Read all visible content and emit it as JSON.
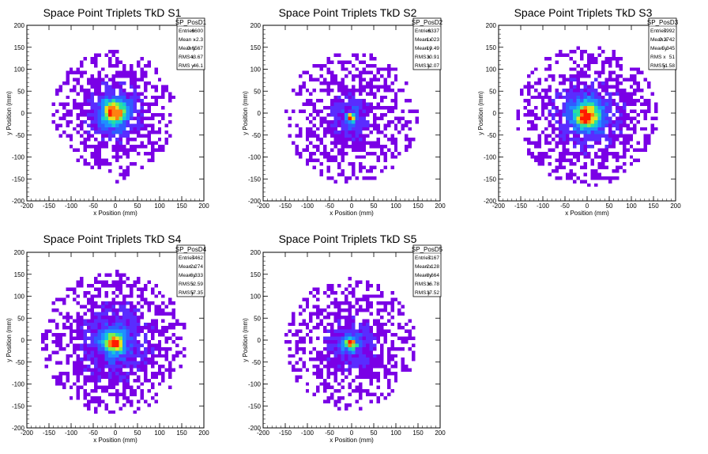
{
  "chart_data": [
    {
      "type": "heatmap",
      "title": "Space Point Triplets TkD S1",
      "xlabel": "x Position (mm)",
      "ylabel": "y Position (mm)",
      "xlim": [
        -200,
        200
      ],
      "ylim": [
        -200,
        200
      ],
      "xticks": [
        -200,
        -150,
        -100,
        -50,
        0,
        50,
        100,
        150,
        200
      ],
      "yticks": [
        -200,
        -150,
        -100,
        -50,
        0,
        50,
        100,
        150,
        200
      ],
      "grid": false,
      "stats_box": {
        "name": "SP_PosD1",
        "rows": [
          {
            "label": "Entries",
            "value": "6600"
          },
          {
            "label": "Mean x",
            "value": "-2.3"
          },
          {
            "label": "Mean y",
            "value": "0.6567"
          },
          {
            "label": "RMS x",
            "value": "43.67"
          },
          {
            "label": "RMS y",
            "value": "46.1"
          }
        ]
      },
      "distribution": {
        "mean_x": -2.3,
        "mean_y": 0.6567,
        "rms_x": 43.67,
        "rms_y": 46.1,
        "core_sigma": 18,
        "extent_radius": 140,
        "extra_band": true
      }
    },
    {
      "type": "heatmap",
      "title": "Space Point Triplets TkD S2",
      "xlabel": "x Position (mm)",
      "ylabel": "y Position (mm)",
      "xlim": [
        -200,
        200
      ],
      "ylim": [
        -200,
        200
      ],
      "xticks": [
        -200,
        -150,
        -100,
        -50,
        0,
        50,
        100,
        150,
        200
      ],
      "yticks": [
        -200,
        -150,
        -100,
        -50,
        0,
        50,
        100,
        150,
        200
      ],
      "grid": false,
      "stats_box": {
        "name": "SP_PosD2",
        "rows": [
          {
            "label": "Entries",
            "value": "6337"
          },
          {
            "label": "Mean x",
            "value": "-1.023"
          },
          {
            "label": "Mean y",
            "value": "-10.49"
          },
          {
            "label": "RMS x",
            "value": "30.91"
          },
          {
            "label": "RMS y",
            "value": "32.07"
          }
        ]
      },
      "distribution": {
        "mean_x": -1.023,
        "mean_y": -10.49,
        "rms_x": 30.91,
        "rms_y": 32.07,
        "core_sigma": 7,
        "extent_radius": 150,
        "extra_band": false
      }
    },
    {
      "type": "heatmap",
      "title": "Space Point Triplets TkD S3",
      "xlabel": "x Position (mm)",
      "ylabel": "y Position (mm)",
      "xlim": [
        -200,
        200
      ],
      "ylim": [
        -200,
        200
      ],
      "xticks": [
        -200,
        -150,
        -100,
        -50,
        0,
        50,
        100,
        150,
        200
      ],
      "yticks": [
        -200,
        -150,
        -100,
        -50,
        0,
        50,
        100,
        150,
        200
      ],
      "grid": false,
      "stats_box": {
        "name": "SP_PosD3",
        "rows": [
          {
            "label": "Entries",
            "value": "7992"
          },
          {
            "label": "Mean x",
            "value": "0.2742"
          },
          {
            "label": "Mean y",
            "value": "-5.345"
          },
          {
            "label": "RMS x",
            "value": "51"
          },
          {
            "label": "RMS y",
            "value": "51.58"
          }
        ]
      },
      "distribution": {
        "mean_x": 0.2742,
        "mean_y": -5.345,
        "rms_x": 51,
        "rms_y": 51.58,
        "core_sigma": 20,
        "extent_radius": 160,
        "extra_band": false
      }
    },
    {
      "type": "heatmap",
      "title": "Space Point Triplets TkD S4",
      "xlabel": "x Position (mm)",
      "ylabel": "y Position (mm)",
      "xlim": [
        -200,
        200
      ],
      "ylim": [
        -200,
        200
      ],
      "xticks": [
        -200,
        -150,
        -100,
        -50,
        0,
        50,
        100,
        150,
        200
      ],
      "yticks": [
        -200,
        -150,
        -100,
        -50,
        0,
        50,
        100,
        150,
        200
      ],
      "grid": false,
      "stats_box": {
        "name": "SP_PosD4",
        "rows": [
          {
            "label": "Entries",
            "value": "7462"
          },
          {
            "label": "Mean x",
            "value": "-2.274"
          },
          {
            "label": "Mean y",
            "value": "-6.333"
          },
          {
            "label": "RMS x",
            "value": "52.59"
          },
          {
            "label": "RMS y",
            "value": "57.35"
          }
        ]
      },
      "distribution": {
        "mean_x": -2.274,
        "mean_y": -6.333,
        "rms_x": 52.59,
        "rms_y": 57.35,
        "core_sigma": 15,
        "extent_radius": 165,
        "extra_band": false
      }
    },
    {
      "type": "heatmap",
      "title": "Space Point Triplets TkD S5",
      "xlabel": "x Position (mm)",
      "ylabel": "y Position (mm)",
      "xlim": [
        -200,
        200
      ],
      "ylim": [
        -200,
        200
      ],
      "xticks": [
        -200,
        -150,
        -100,
        -50,
        0,
        50,
        100,
        150,
        200
      ],
      "yticks": [
        -200,
        -150,
        -100,
        -50,
        0,
        50,
        100,
        150,
        200
      ],
      "grid": false,
      "stats_box": {
        "name": "SP_PosD5",
        "rows": [
          {
            "label": "Entries",
            "value": "7167"
          },
          {
            "label": "Mean x",
            "value": "-2.128"
          },
          {
            "label": "Mean y",
            "value": "-8.664"
          },
          {
            "label": "RMS x",
            "value": "36.78"
          },
          {
            "label": "RMS y",
            "value": "37.52"
          }
        ]
      },
      "distribution": {
        "mean_x": -2.128,
        "mean_y": -8.664,
        "rms_x": 36.78,
        "rms_y": 37.52,
        "core_sigma": 9,
        "extent_radius": 150,
        "extra_band": false
      }
    }
  ],
  "colors": {
    "palette": [
      "#7a00e6",
      "#5a2cff",
      "#2f5cff",
      "#1f8fff",
      "#17c8d8",
      "#28e0a0",
      "#7af050",
      "#e8e020",
      "#ff8010",
      "#ff1a00"
    ],
    "background": "#ffffff",
    "axis": "#000000"
  }
}
